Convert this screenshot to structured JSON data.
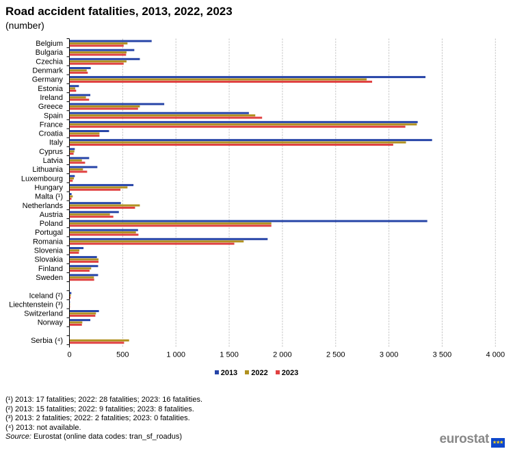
{
  "title": "Road accident fatalities, 2013, 2022, 2023",
  "subtitle": "(number)",
  "chart_data": {
    "type": "bar",
    "orientation": "horizontal",
    "categories": [
      "Belgium",
      "Bulgaria",
      "Czechia",
      "Denmark",
      "Germany",
      "Estonia",
      "Ireland",
      "Greece",
      "Spain",
      "France",
      "Croatia",
      "Italy",
      "Cyprus",
      "Latvia",
      "Lithuania",
      "Luxembourg",
      "Hungary",
      "Malta (¹)",
      "Netherlands",
      "Austria",
      "Poland",
      "Portugal",
      "Romania",
      "Slovenia",
      "Slovakia",
      "Finland",
      "Sweden",
      "",
      "Iceland (²)",
      "Liechtenstein (³)",
      "Switzerland",
      "Norway",
      "",
      "Serbia (⁴)"
    ],
    "series": [
      {
        "name": "2013",
        "color": "#2644a7",
        "values": [
          769,
          606,
          658,
          197,
          3340,
          86,
          193,
          887,
          1682,
          3267,
          369,
          3402,
          47,
          182,
          259,
          47,
          598,
          17,
          480,
          461,
          3357,
          641,
          1858,
          129,
          255,
          266,
          266,
          null,
          15,
          2,
          274,
          193,
          null,
          null
        ]
      },
      {
        "name": "2022",
        "color": "#b09120",
        "values": [
          542,
          533,
          533,
          159,
          2788,
          51,
          152,
          658,
          1742,
          3259,
          279,
          3157,
          43,
          114,
          124,
          39,
          542,
          28,
          658,
          377,
          1893,
          621,
          1633,
          90,
          270,
          201,
          227,
          null,
          9,
          2,
          246,
          118,
          null,
          557
        ]
      },
      {
        "name": "2023",
        "color": "#e04040",
        "values": [
          506,
          529,
          506,
          169,
          2839,
          60,
          182,
          641,
          1806,
          3151,
          279,
          3037,
          36,
          144,
          163,
          28,
          476,
          16,
          613,
          409,
          1893,
          645,
          1545,
          86,
          270,
          186,
          229,
          null,
          8,
          0,
          240,
          114,
          null,
          510
        ]
      }
    ],
    "xlim": [
      0,
      4000
    ],
    "xticks": [
      0,
      500,
      1000,
      1500,
      2000,
      2500,
      3000,
      3500,
      4000
    ],
    "xtick_labels": [
      "0",
      "500",
      "1 000",
      "1 500",
      "2 000",
      "2 500",
      "3 000",
      "3 500",
      "4 000"
    ],
    "grid": "vertical dashed",
    "legend": "bottom"
  },
  "footnotes": [
    "(¹) 2013: 17 fatalities; 2022: 28 fatalities; 2023: 16 fatalities.",
    "(²) 2013: 15 fatalities; 2022: 9 fatalities; 2023: 8 fatalities.",
    "(³) 2013: 2 fatalities; 2022: 2 fatalities; 2023: 0 fatalities.",
    "(⁴) 2013: not available."
  ],
  "source_label": "Source:",
  "source_text": " Eurostat (online data codes: tran_sf_roadus)",
  "logo": "eurostat"
}
